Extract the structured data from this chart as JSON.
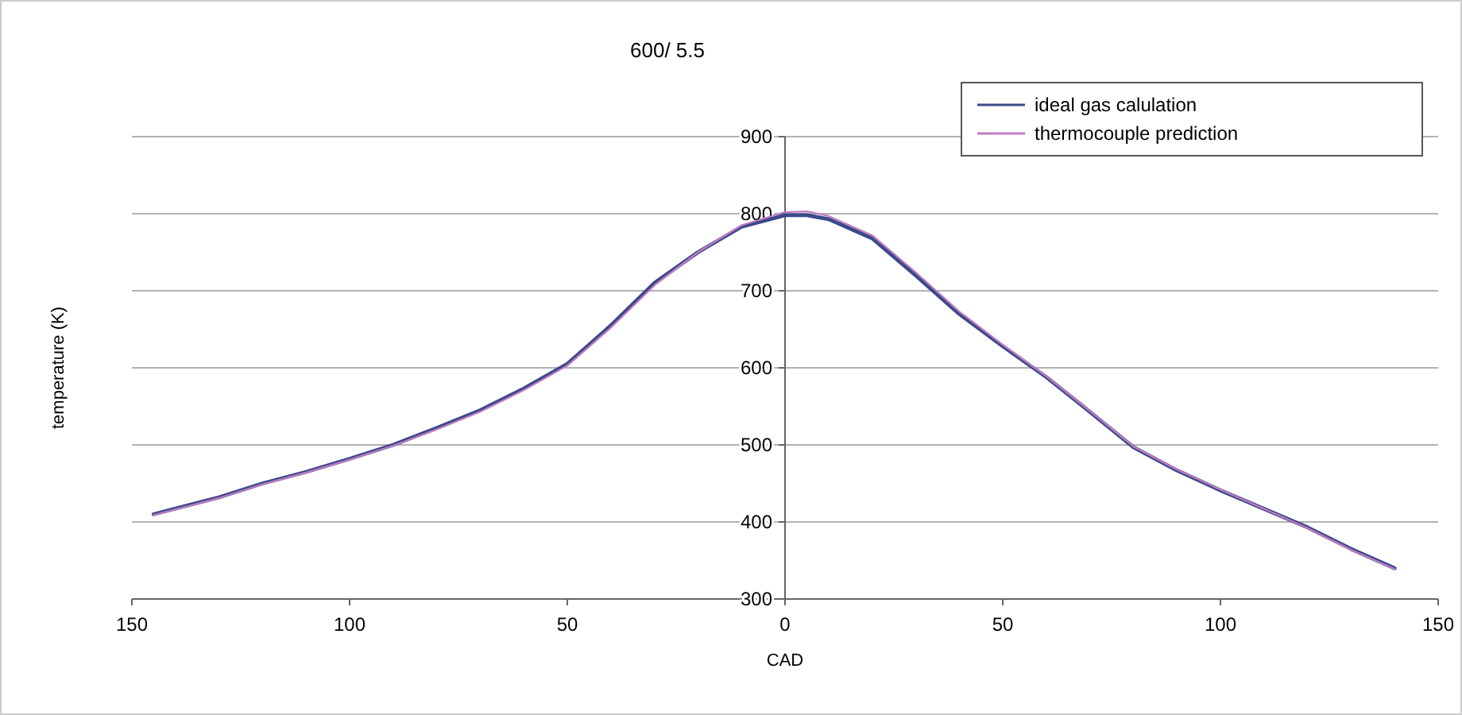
{
  "chart_data": {
    "type": "line",
    "title": "600/ 5.5",
    "xlabel": "CAD",
    "ylabel": "temperature (K)",
    "xlim": [
      -150,
      150
    ],
    "ylim": [
      300,
      900
    ],
    "xticks": [
      {
        "value": -150,
        "label": "150"
      },
      {
        "value": -100,
        "label": "100"
      },
      {
        "value": -50,
        "label": "50"
      },
      0,
      50,
      100,
      150
    ],
    "yticks": [
      300,
      400,
      500,
      600,
      700,
      800,
      900
    ],
    "grid": "y",
    "legend": "top right",
    "marker": "none",
    "line_style": "solid",
    "x": [
      -145,
      -130,
      -120,
      -110,
      -100,
      -90,
      -80,
      -70,
      -60,
      -50,
      -40,
      -30,
      -20,
      -10,
      0,
      5,
      10,
      20,
      30,
      40,
      50,
      60,
      70,
      80,
      90,
      100,
      110,
      120,
      130,
      140
    ],
    "series": [
      {
        "name": "ideal gas calulation",
        "color": "#3a4a8a",
        "values": [
          410,
          432,
          450,
          465,
          482,
          500,
          522,
          545,
          573,
          605,
          655,
          710,
          750,
          783,
          798,
          798,
          793,
          768,
          720,
          670,
          628,
          588,
          543,
          497,
          467,
          441,
          417,
          393,
          365,
          340
        ]
      },
      {
        "name": "thermocouple prediction",
        "color": "#c27cc2",
        "values": [
          409,
          431,
          449,
          464,
          481,
          499,
          520,
          543,
          571,
          603,
          652,
          707,
          750,
          785,
          802,
          803,
          797,
          772,
          724,
          673,
          630,
          589,
          544,
          498,
          468,
          442,
          417,
          392,
          364,
          339
        ]
      }
    ]
  }
}
